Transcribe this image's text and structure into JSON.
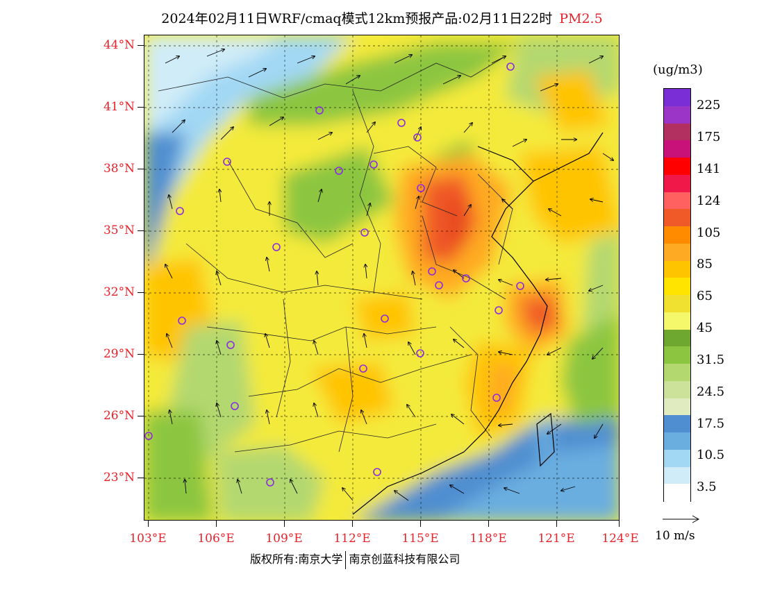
{
  "title": {
    "main": "2024年02月11日WRF/cmaq模式12km预报产品:02月11日22时",
    "pollutant": "PM2.5"
  },
  "map": {
    "lat_labels": [
      "44°N",
      "41°N",
      "38°N",
      "35°N",
      "32°N",
      "29°N",
      "26°N",
      "23°N"
    ],
    "lon_labels": [
      "103°E",
      "106°E",
      "109°E",
      "112°E",
      "115°E",
      "118°E",
      "121°E",
      "124°E"
    ],
    "extent": {
      "lon_min": 103,
      "lon_max": 124,
      "lat_min": 21.5,
      "lat_max": 44.5
    }
  },
  "legend": {
    "unit": "(ug/m3)",
    "labels": [
      "225",
      "175",
      "141",
      "124",
      "105",
      "85",
      "65",
      "45",
      "31.5",
      "24.5",
      "17.5",
      "10.5",
      "3.5"
    ],
    "colors": [
      "#7a2fd6",
      "#9b35c8",
      "#b23060",
      "#c8127a",
      "#ff0000",
      "#f01848",
      "#ff6060",
      "#f05a28",
      "#ff8c00",
      "#ffaa22",
      "#ffc400",
      "#ffe400",
      "#f0e030",
      "#f4f86a",
      "#6ea830",
      "#8cc640",
      "#b4d870",
      "#cce29a",
      "#e0ebc0",
      "#4f8ed0",
      "#6aaee0",
      "#a2d8f4",
      "#d0ecf8",
      "#ffffff"
    ]
  },
  "wind_reference": {
    "label": "10 m/s"
  },
  "copyright": {
    "left": "版权所有:南京大学",
    "right": "南京创蓝科技有限公司"
  }
}
